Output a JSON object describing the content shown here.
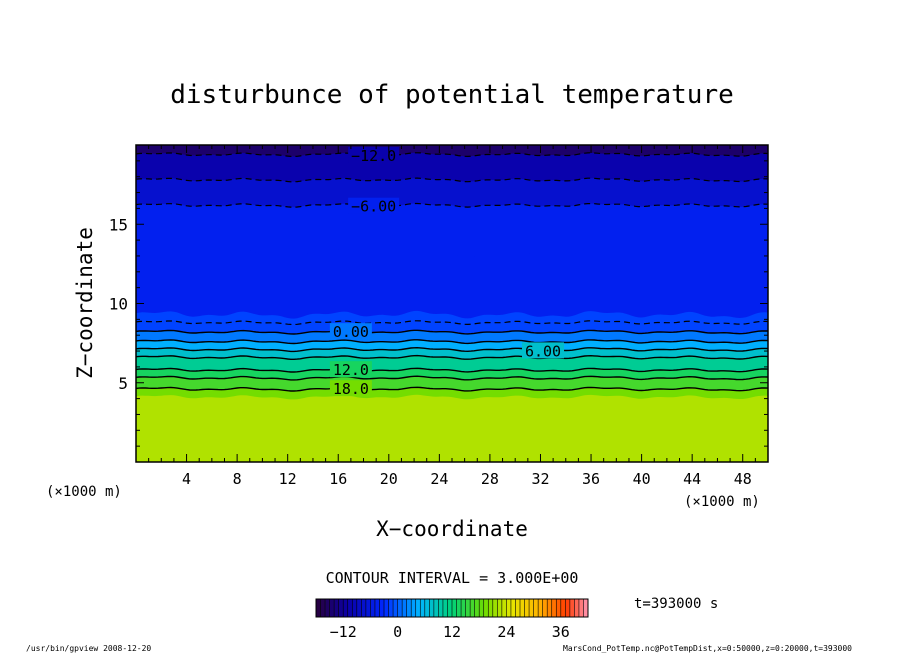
{
  "chart_data": {
    "type": "heatmap",
    "title": "disturbunce of potential temperature",
    "xlabel": "X−coordinate",
    "ylabel": "Z−coordinate",
    "x_unit_left": "(×1000 m)",
    "x_unit_right": "(×1000 m)",
    "xlim": [
      0,
      50
    ],
    "ylim": [
      0,
      20
    ],
    "x_ticks": [
      4,
      8,
      12,
      16,
      20,
      24,
      28,
      32,
      36,
      40,
      44,
      48
    ],
    "y_ticks": [
      5,
      10,
      15
    ],
    "contour_lines": [
      {
        "level": -12.0,
        "z": 19.4,
        "label": "−12.0",
        "label_x": 18.8,
        "style": "dashed"
      },
      {
        "level": -9.0,
        "z": 17.8,
        "label": "",
        "style": "dashed"
      },
      {
        "level": -6.0,
        "z": 16.2,
        "label": "−6.00",
        "label_x": 18.8,
        "style": "dashed"
      },
      {
        "level": -3.0,
        "z": 8.8,
        "label": "",
        "style": "dashed"
      },
      {
        "level": 0.0,
        "z": 8.2,
        "label": "0.00",
        "label_x": 17.0,
        "style": "solid"
      },
      {
        "level": 3.0,
        "z": 7.6,
        "label": "",
        "style": "solid"
      },
      {
        "level": 6.0,
        "z": 7.1,
        "label": "6.00",
        "label_x": 32.2,
        "style": "solid"
      },
      {
        "level": 9.0,
        "z": 6.6,
        "label": "",
        "style": "solid"
      },
      {
        "level": 12.0,
        "z": 5.8,
        "label": "12.0",
        "label_x": 17.0,
        "style": "solid"
      },
      {
        "level": 15.0,
        "z": 5.3,
        "label": "",
        "style": "solid"
      },
      {
        "level": 18.0,
        "z": 4.6,
        "label": "18.0",
        "label_x": 17.0,
        "style": "solid"
      }
    ],
    "contour_interval_text": "CONTOUR INTERVAL = 3.000E+00",
    "time_text": "t=393000 s",
    "colorbar": {
      "range": [
        -18,
        42
      ],
      "ticks": [
        -12,
        0,
        12,
        24,
        36
      ],
      "tick_labels": [
        "−12",
        "0",
        "12",
        "24",
        "36"
      ]
    }
  },
  "footer": {
    "left": "/usr/bin/gpview  2008-12-20",
    "right": "MarsCond_PotTemp.nc@PotTempDist,x=0:50000,z=0:20000,t=393000"
  }
}
